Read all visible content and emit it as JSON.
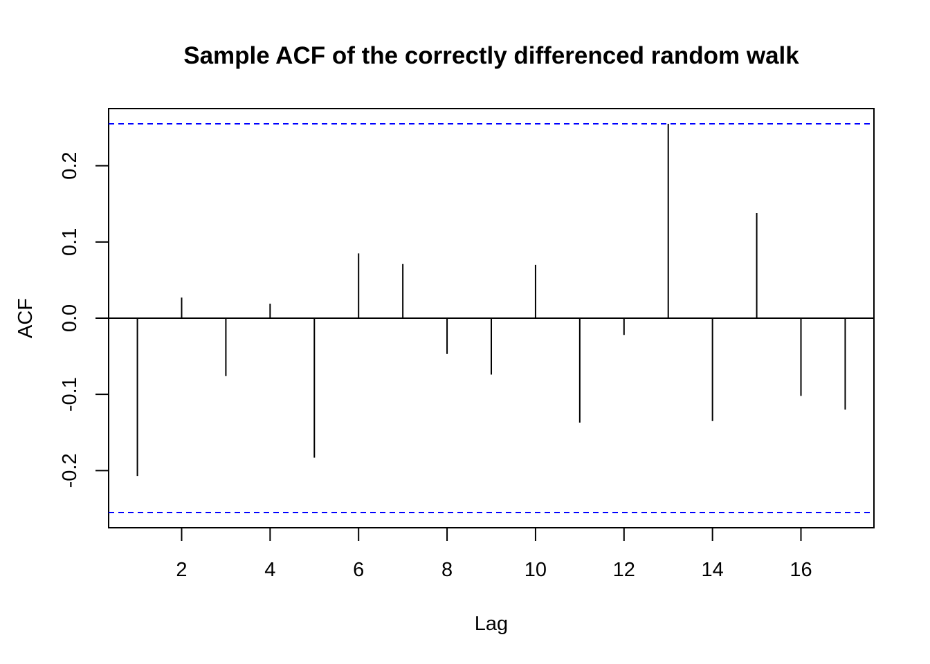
{
  "chart_data": {
    "type": "bar",
    "title": "Sample ACF of the correctly differenced random walk",
    "xlabel": "Lag",
    "ylabel": "ACF",
    "xlim": [
      0.35,
      17.65
    ],
    "ylim": [
      -0.275,
      0.275
    ],
    "x": [
      1,
      2,
      3,
      4,
      5,
      6,
      7,
      8,
      9,
      10,
      11,
      12,
      13,
      14,
      15,
      16,
      17
    ],
    "values": [
      -0.207,
      0.027,
      -0.076,
      0.019,
      -0.183,
      0.085,
      0.071,
      -0.047,
      -0.074,
      0.07,
      -0.137,
      -0.022,
      0.255,
      -0.135,
      0.138,
      -0.102,
      -0.12
    ],
    "x_ticks": [
      2,
      4,
      6,
      8,
      10,
      12,
      14,
      16
    ],
    "y_ticks": [
      -0.2,
      -0.1,
      0.0,
      0.1,
      0.2
    ],
    "y_tick_labels": [
      "-0.2",
      "-0.1",
      "0.0",
      "0.1",
      "0.2"
    ],
    "confidence_bounds": [
      0.255,
      -0.255
    ],
    "colors": {
      "bars": "#000000",
      "bounds": "#0000ff",
      "zero_line": "#000000"
    },
    "grid": false
  }
}
